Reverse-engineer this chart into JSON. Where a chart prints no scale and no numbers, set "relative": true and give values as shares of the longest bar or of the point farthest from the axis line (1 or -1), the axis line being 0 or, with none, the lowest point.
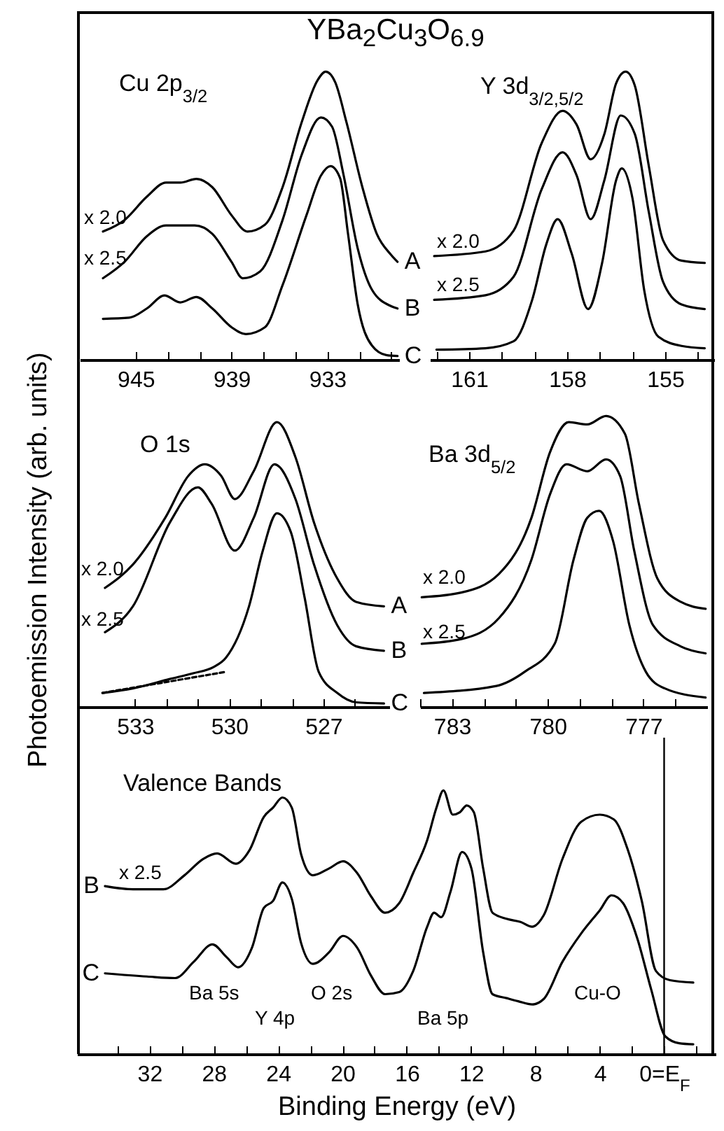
{
  "chart_data": [
    {
      "type": "line",
      "title": "YBa$_{2}$Cu$_{3}$O$_{6.9}$",
      "relative": true,
      "xlim": [
        948.5,
        928.5
      ],
      "xticks": [
        945,
        {
          "value": 943,
          "label": null
        },
        {
          "value": 941,
          "label": null
        },
        939,
        {
          "value": 937,
          "label": null
        },
        {
          "value": 935,
          "label": null
        },
        933,
        {
          "value": 931,
          "label": null
        },
        {
          "value": 929,
          "label": null
        }
      ],
      "annotations": [
        "Cu 2p$_{3/2}$",
        "x 2.0",
        "x 2.5"
      ],
      "series": [
        {
          "name": "A",
          "color": "#000000",
          "x": [
            947.05,
            945.7,
            944.3,
            943.1,
            942.2,
            941.2,
            940.2,
            939.0,
            938.0,
            936.9,
            935.8,
            934.6,
            933.6,
            933.1,
            932.5,
            931.8,
            930.8,
            929.9,
            929.0,
            928.6
          ],
          "values": [
            0.445,
            0.485,
            0.566,
            0.615,
            0.615,
            0.628,
            0.599,
            0.502,
            0.445,
            0.469,
            0.599,
            0.825,
            0.971,
            1.0,
            0.963,
            0.825,
            0.599,
            0.437,
            0.364,
            0.34
          ]
        },
        {
          "name": "B",
          "color": "#000000",
          "x": [
            947.05,
            945.7,
            944.3,
            943.1,
            941.3,
            940.2,
            939.0,
            938.3,
            937.2,
            935.8,
            934.6,
            933.4,
            932.7,
            932.0,
            931.1,
            930.2,
            929.0,
            928.6
          ],
          "values": [
            0.283,
            0.34,
            0.429,
            0.466,
            0.466,
            0.437,
            0.34,
            0.283,
            0.307,
            0.485,
            0.712,
            0.841,
            0.809,
            0.647,
            0.388,
            0.243,
            0.186,
            0.178
          ]
        },
        {
          "name": "C",
          "color": "#000000",
          "x": [
            947.05,
            945.4,
            944.3,
            943.2,
            942.2,
            941.2,
            940.2,
            939.0,
            938.1,
            936.9,
            935.8,
            934.3,
            933.4,
            932.8,
            932.2,
            931.7,
            931.1,
            930.2,
            929.3,
            928.6
          ],
          "values": [
            0.142,
            0.146,
            0.178,
            0.223,
            0.199,
            0.218,
            0.178,
            0.113,
            0.089,
            0.113,
            0.259,
            0.502,
            0.639,
            0.672,
            0.631,
            0.437,
            0.194,
            0.049,
            0.016,
            0.013
          ]
        }
      ]
    },
    {
      "type": "line",
      "relative": true,
      "xlim": [
        162.2,
        153.5
      ],
      "xticks": [
        {
          "value": 162,
          "label": null
        },
        161,
        {
          "value": 160,
          "label": null
        },
        {
          "value": 159,
          "label": null
        },
        158,
        {
          "value": 157,
          "label": null
        },
        {
          "value": 156,
          "label": null
        },
        155,
        {
          "value": 154,
          "label": null
        }
      ],
      "annotations": [
        "Y 3d$_{3/2,5/2}$",
        "x 2.0",
        "x 2.5"
      ],
      "series": [
        {
          "color": "#000000",
          "x": [
            162.07,
            160.5,
            159.64,
            158.78,
            158.14,
            157.71,
            157.28,
            156.86,
            156.5,
            156.21,
            155.93,
            155.5,
            155.07,
            154.5,
            153.79
          ],
          "values": [
            0.36,
            0.376,
            0.448,
            0.752,
            0.864,
            0.816,
            0.696,
            0.784,
            0.96,
            1.0,
            0.952,
            0.672,
            0.416,
            0.344,
            0.336
          ]
        },
        {
          "color": "#000000",
          "x": [
            162.07,
            160.5,
            159.64,
            158.78,
            158.14,
            157.71,
            157.28,
            156.86,
            156.36,
            155.93,
            155.5,
            155.07,
            154.5,
            153.79
          ],
          "values": [
            0.208,
            0.224,
            0.288,
            0.592,
            0.72,
            0.64,
            0.488,
            0.624,
            0.848,
            0.784,
            0.512,
            0.272,
            0.192,
            0.176
          ]
        },
        {
          "color": "#000000",
          "x": [
            162.0,
            160.5,
            159.64,
            159.07,
            158.64,
            158.29,
            157.86,
            157.36,
            156.93,
            156.5,
            156.33,
            156.0,
            155.64,
            155.21,
            154.5,
            153.79
          ],
          "values": [
            0.035,
            0.04,
            0.064,
            0.208,
            0.4,
            0.488,
            0.368,
            0.176,
            0.336,
            0.624,
            0.664,
            0.56,
            0.24,
            0.08,
            0.048,
            0.04
          ]
        }
      ]
    },
    {
      "type": "line",
      "relative": true,
      "ylabel": "Photoemission Intensity (arb. units)",
      "xlim": [
        534.85,
        524.9
      ],
      "xticks": [
        533,
        {
          "value": 532,
          "label": null
        },
        {
          "value": 531,
          "label": null
        },
        530,
        {
          "value": 529,
          "label": null
        },
        {
          "value": 528,
          "label": null
        },
        527,
        {
          "value": 526,
          "label": null
        }
      ],
      "annotations": [
        "O 1s",
        "x 2.0",
        "x 2.5"
      ],
      "series": [
        {
          "name": "A",
          "color": "#000000",
          "x": [
            533.96,
            533.07,
            532.04,
            531.3,
            530.78,
            530.26,
            529.82,
            529.22,
            528.48,
            527.89,
            527.3,
            526.56,
            525.96,
            525.07
          ],
          "values": [
            0.418,
            0.5,
            0.664,
            0.812,
            0.852,
            0.812,
            0.73,
            0.828,
            1.0,
            0.877,
            0.648,
            0.451,
            0.369,
            0.353
          ]
        },
        {
          "name": "B",
          "color": "#000000",
          "x": [
            533.96,
            533.07,
            531.89,
            531.0,
            530.56,
            529.82,
            529.22,
            528.56,
            527.89,
            527.3,
            526.56,
            525.96,
            525.07
          ],
          "values": [
            0.262,
            0.353,
            0.648,
            0.771,
            0.713,
            0.549,
            0.664,
            0.852,
            0.73,
            0.5,
            0.287,
            0.213,
            0.197
          ]
        },
        {
          "name": "C",
          "color": "#000000",
          "x": [
            534.04,
            533.07,
            531.89,
            531.15,
            530.5,
            530.11,
            529.37,
            528.93,
            528.48,
            528.04,
            527.6,
            527.15,
            526.56,
            525.96,
            525.07
          ],
          "values": [
            0.049,
            0.065,
            0.098,
            0.118,
            0.14,
            0.172,
            0.353,
            0.549,
            0.68,
            0.615,
            0.385,
            0.123,
            0.049,
            0.016,
            0.012
          ]
        },
        {
          "color": "#000000",
          "line_style": "dashed",
          "x": [
            534.04,
            530.11
          ],
          "values": [
            0.049,
            0.123
          ]
        }
      ]
    },
    {
      "type": "line",
      "relative": true,
      "xlim": [
        784,
        775
      ],
      "xticks": [
        {
          "value": 784,
          "label": null
        },
        783,
        {
          "value": 782,
          "label": null
        },
        {
          "value": 781,
          "label": null
        },
        780,
        {
          "value": 779,
          "label": null
        },
        {
          "value": 778,
          "label": null
        },
        777,
        {
          "value": 776,
          "label": null
        }
      ],
      "annotations": [
        "Ba 3d$_{5/2}$",
        "x 2.0",
        "x 2.5"
      ],
      "series": [
        {
          "color": "#000000",
          "x": [
            783.95,
            782.71,
            781.53,
            780.51,
            779.93,
            779.34,
            778.76,
            778.17,
            777.58,
            777.14,
            776.56,
            775.83,
            775.05
          ],
          "values": [
            0.377,
            0.393,
            0.457,
            0.65,
            0.875,
            0.979,
            0.971,
            1.0,
            0.939,
            0.698,
            0.441,
            0.361,
            0.337
          ]
        },
        {
          "color": "#000000",
          "x": [
            783.95,
            782.71,
            781.53,
            780.51,
            779.93,
            779.41,
            778.76,
            778.17,
            777.73,
            777.29,
            776.7,
            775.83,
            775.05
          ],
          "values": [
            0.217,
            0.233,
            0.305,
            0.506,
            0.73,
            0.834,
            0.81,
            0.851,
            0.794,
            0.538,
            0.281,
            0.208,
            0.184
          ]
        },
        {
          "color": "#000000",
          "x": [
            783.88,
            781.61,
            780.73,
            779.78,
            779.19,
            778.76,
            778.39,
            777.95,
            777.44,
            776.92,
            776.34,
            775.05
          ],
          "values": [
            0.048,
            0.072,
            0.12,
            0.217,
            0.506,
            0.65,
            0.674,
            0.57,
            0.281,
            0.12,
            0.064,
            0.032
          ]
        }
      ]
    },
    {
      "type": "line",
      "relative": true,
      "xlabel": "Binding Energy (eV)",
      "xlim": [
        36.5,
        -3.2
      ],
      "xticks": [
        {
          "value": 34,
          "label": null
        },
        32,
        {
          "value": 30,
          "label": null
        },
        28,
        {
          "value": 26,
          "label": null
        },
        24,
        {
          "value": 22,
          "label": null
        },
        20,
        {
          "value": 18,
          "label": null
        },
        16,
        {
          "value": 14,
          "label": null
        },
        12,
        {
          "value": 10,
          "label": null
        },
        8,
        {
          "value": 6,
          "label": null
        },
        4,
        {
          "value": 2,
          "label": null
        },
        {
          "value": 0,
          "label": "0=E$_{F}$"
        },
        {
          "value": -2,
          "label": null
        }
      ],
      "annotations": [
        "Valence Bands",
        "x 2.5",
        "Ba 5s",
        "Y 4p",
        "O 2s",
        "Ba 5p",
        "Cu-O"
      ],
      "ref_lines": [
        {
          "axis": "x",
          "value": 0,
          "color": "#000000"
        }
      ],
      "series": [
        {
          "name": "B",
          "color": "#000000",
          "x": [
            34.76,
            33.02,
            31.13,
            29.82,
            28.66,
            27.79,
            26.63,
            25.76,
            24.89,
            24.31,
            23.73,
            23.15,
            22.57,
            21.84,
            20.83,
            19.96,
            19.09,
            18.22,
            17.35,
            16.47,
            15.6,
            14.73,
            14.15,
            13.72,
            13.14,
            12.7,
            12.27,
            11.83,
            11.25,
            10.67,
            9.8,
            8.93,
            8.2,
            7.48,
            6.32,
            5.16,
            4.0,
            3.13,
            2.26,
            1.39,
            0.51,
            -0.36,
            -1.81
          ],
          "values": [
            0.637,
            0.625,
            0.625,
            0.678,
            0.74,
            0.761,
            0.722,
            0.775,
            0.899,
            0.935,
            0.973,
            0.935,
            0.758,
            0.678,
            0.704,
            0.731,
            0.687,
            0.598,
            0.536,
            0.572,
            0.687,
            0.811,
            0.935,
            1.0,
            0.908,
            0.917,
            0.943,
            0.917,
            0.704,
            0.536,
            0.513,
            0.501,
            0.483,
            0.527,
            0.74,
            0.881,
            0.908,
            0.89,
            0.775,
            0.581,
            0.315,
            0.28,
            0.271
          ]
        },
        {
          "name": "C",
          "color": "#000000",
          "x": [
            34.76,
            32.15,
            30.4,
            29.24,
            28.08,
            27.21,
            26.49,
            25.62,
            24.89,
            24.31,
            23.73,
            23.15,
            22.57,
            21.84,
            20.83,
            19.96,
            19.09,
            18.22,
            17.35,
            16.47,
            15.6,
            14.73,
            14.3,
            13.86,
            13.28,
            12.56,
            11.98,
            11.25,
            10.67,
            9.8,
            9.07,
            8.2,
            7.48,
            6.32,
            5.16,
            4.0,
            3.27,
            2.55,
            1.67,
            0.8,
            -0.07,
            -0.94,
            -1.81
          ],
          "values": [
            0.306,
            0.294,
            0.288,
            0.35,
            0.416,
            0.368,
            0.329,
            0.404,
            0.554,
            0.581,
            0.651,
            0.589,
            0.421,
            0.342,
            0.386,
            0.448,
            0.404,
            0.297,
            0.227,
            0.235,
            0.315,
            0.483,
            0.536,
            0.519,
            0.616,
            0.766,
            0.704,
            0.386,
            0.227,
            0.212,
            0.2,
            0.188,
            0.209,
            0.35,
            0.457,
            0.545,
            0.602,
            0.572,
            0.439,
            0.244,
            0.067,
            0.041,
            0.037
          ]
        }
      ]
    }
  ]
}
